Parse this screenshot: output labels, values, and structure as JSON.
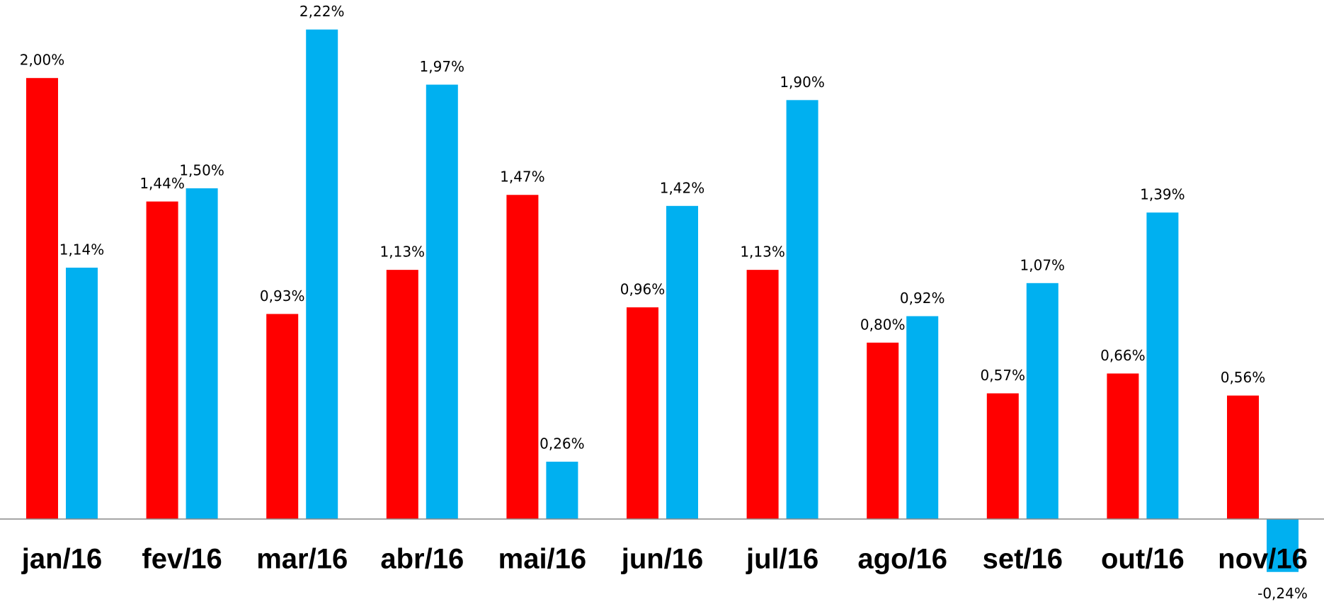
{
  "chart_data": {
    "type": "bar",
    "categories": [
      "jan/16",
      "fev/16",
      "mar/16",
      "abr/16",
      "mai/16",
      "jun/16",
      "jul/16",
      "ago/16",
      "set/16",
      "out/16",
      "nov/16"
    ],
    "series": [
      {
        "color": "#ff0000",
        "values": [
          2.0,
          1.44,
          0.93,
          1.13,
          1.47,
          0.96,
          1.13,
          0.8,
          0.57,
          0.66,
          0.56
        ],
        "value_labels": [
          "2,00%",
          "1,44%",
          "0,93%",
          "1,13%",
          "1,47%",
          "0,96%",
          "1,13%",
          "0,80%",
          "0,57%",
          "0,66%",
          "0,56%"
        ]
      },
      {
        "color": "#00b0f0",
        "values": [
          1.14,
          1.5,
          2.22,
          1.97,
          0.26,
          1.42,
          1.9,
          0.92,
          1.07,
          1.39,
          -0.24
        ],
        "value_labels": [
          "1,14%",
          "1,50%",
          "2,22%",
          "1,97%",
          "0,26%",
          "1,42%",
          "1,90%",
          "0,92%",
          "1,07%",
          "1,39%",
          "-0,24%"
        ]
      }
    ]
  }
}
